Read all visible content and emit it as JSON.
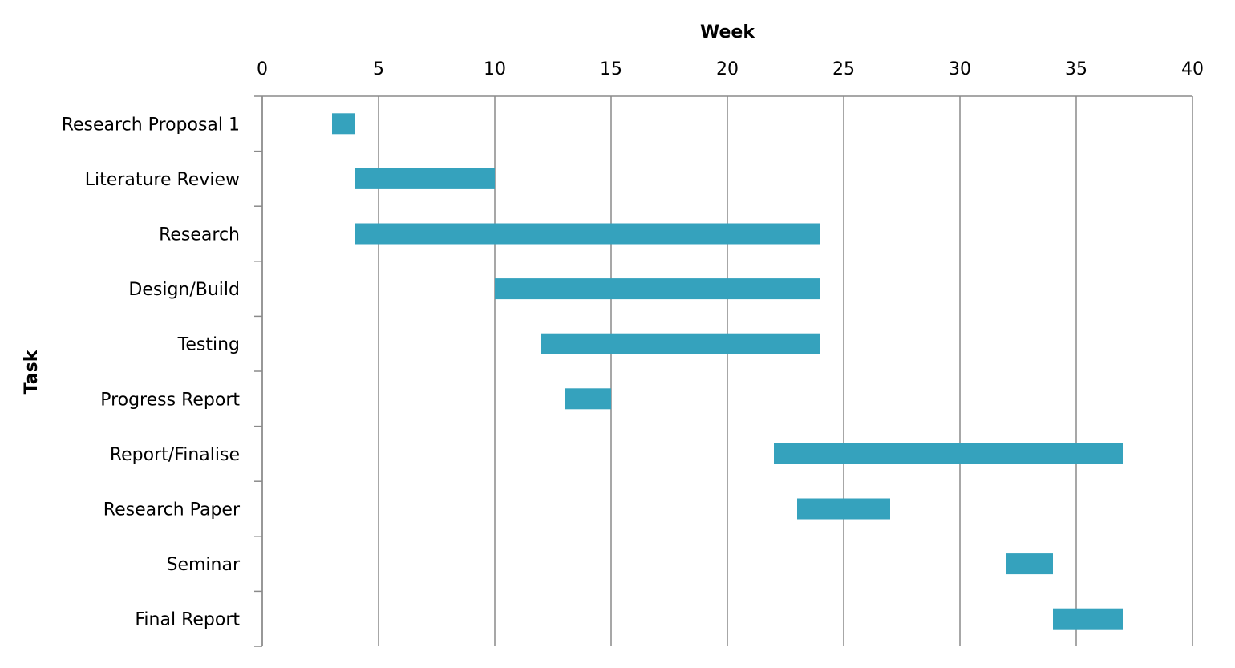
{
  "chart_data": {
    "type": "bar",
    "orientation": "horizontal",
    "xlabel": "Week",
    "ylabel": "Task",
    "xlim": [
      0,
      40
    ],
    "x_ticks": [
      0,
      5,
      10,
      15,
      20,
      25,
      30,
      35,
      40
    ],
    "x_tick_labels": [
      "0",
      "5",
      "10",
      "15",
      "20",
      "25",
      "30",
      "35",
      "40"
    ],
    "grid": true,
    "bar_color": "#35a2bd",
    "tasks": [
      {
        "label": "Research Proposal 1",
        "start": 3,
        "end": 4
      },
      {
        "label": "Literature Review",
        "start": 4,
        "end": 10
      },
      {
        "label": "Research",
        "start": 4,
        "end": 24
      },
      {
        "label": "Design/Build",
        "start": 10,
        "end": 24
      },
      {
        "label": "Testing",
        "start": 12,
        "end": 24
      },
      {
        "label": "Progress Report",
        "start": 13,
        "end": 15
      },
      {
        "label": "Report/Finalise",
        "start": 22,
        "end": 37
      },
      {
        "label": "Research Paper",
        "start": 23,
        "end": 27
      },
      {
        "label": "Seminar",
        "start": 32,
        "end": 34
      },
      {
        "label": "Final Report",
        "start": 34,
        "end": 37
      }
    ]
  }
}
